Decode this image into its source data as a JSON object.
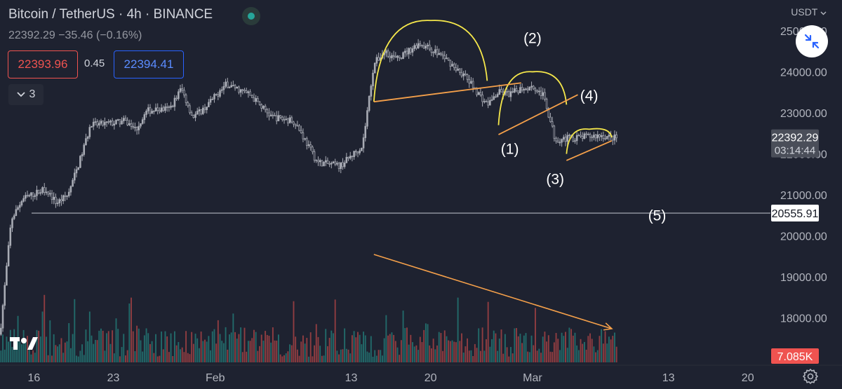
{
  "header": {
    "title": "Bitcoin / TetherUS · 4h · BINANCE",
    "last": "22392.29",
    "change": "−35.46 (−0.16%)",
    "bid": "22393.96",
    "spread": "0.45",
    "ask": "22394.41",
    "indicators_count": "3",
    "currency": "USDT"
  },
  "colors": {
    "background": "#1e2230",
    "candle": "#a9acb5",
    "volume_up": "#26a69a",
    "volume_down": "#ef5350",
    "pattern_cup": "#f6e84b",
    "trend_line": "#f5a04a",
    "horizontal_line": "#b2b5be"
  },
  "chart_data": {
    "type": "candlestick",
    "symbol": "BTC/USDT",
    "interval": "4h",
    "y_ticks": [
      "25000.00",
      "24000.00",
      "23000.00",
      "22000.00",
      "21000.00",
      "20000.00",
      "19000.00",
      "18000.00"
    ],
    "y_tick_values": [
      25000,
      24000,
      23000,
      22000,
      21000,
      20000,
      19000,
      18000
    ],
    "ylim": [
      16850,
      25750
    ],
    "x_ticks": [
      "16",
      "23",
      "Feb",
      "13",
      "20",
      "Mar",
      "13",
      "20"
    ],
    "x_range": [
      "2023-01-13",
      "2023-03-22"
    ],
    "x_tick_dates": [
      "2023-01-16",
      "2023-01-23",
      "2023-02-01",
      "2023-02-13",
      "2023-02-20",
      "2023-03-01",
      "2023-03-13",
      "2023-03-20"
    ],
    "last_price_label": "22392.29",
    "countdown": "03:14:44",
    "horizontal_line_label": "20555.91",
    "horizontal_line_value": 20555.91,
    "volume_label": "7.085K",
    "price_path": [
      [
        "2023-01-13",
        17600
      ],
      [
        "2023-01-14",
        20400
      ],
      [
        "2023-01-15",
        20900
      ],
      [
        "2023-01-17",
        21150
      ],
      [
        "2023-01-18",
        20800
      ],
      [
        "2023-01-19",
        21000
      ],
      [
        "2023-01-20",
        21800
      ],
      [
        "2023-01-21",
        22700
      ],
      [
        "2023-01-23",
        22750
      ],
      [
        "2023-01-24",
        22800
      ],
      [
        "2023-01-25",
        22600
      ],
      [
        "2023-01-26",
        23050
      ],
      [
        "2023-01-28",
        23100
      ],
      [
        "2023-01-29",
        23600
      ],
      [
        "2023-01-30",
        22900
      ],
      [
        "2023-01-31",
        23100
      ],
      [
        "2023-02-02",
        23700
      ],
      [
        "2023-02-04",
        23450
      ],
      [
        "2023-02-06",
        22900
      ],
      [
        "2023-02-08",
        22800
      ],
      [
        "2023-02-10",
        21800
      ],
      [
        "2023-02-12",
        21700
      ],
      [
        "2023-02-14",
        22200
      ],
      [
        "2023-02-15",
        24200
      ],
      [
        "2023-02-16",
        24500
      ],
      [
        "2023-02-17",
        24300
      ],
      [
        "2023-02-19",
        24700
      ],
      [
        "2023-02-21",
        24400
      ],
      [
        "2023-02-23",
        23900
      ],
      [
        "2023-02-25",
        23200
      ],
      [
        "2023-02-26",
        23500
      ],
      [
        "2023-02-27",
        23450
      ],
      [
        "2023-02-28",
        23600
      ],
      [
        "2023-03-01",
        23650
      ],
      [
        "2023-03-02",
        23400
      ],
      [
        "2023-03-03",
        22350
      ],
      [
        "2023-03-05",
        22400
      ],
      [
        "2023-03-07",
        22450
      ],
      [
        "2023-03-08",
        22392
      ]
    ],
    "annotations": {
      "labels": [
        {
          "text": "(1)",
          "date": "2023-02-27",
          "price": 22000
        },
        {
          "text": "(2)",
          "date": "2023-03-01",
          "price": 24700
        },
        {
          "text": "(3)",
          "date": "2023-03-03",
          "price": 21270
        },
        {
          "text": "(4)",
          "date": "2023-03-06",
          "price": 23300
        },
        {
          "text": "(5)",
          "date": "2023-03-12",
          "price": 20380
        }
      ],
      "cups": [
        {
          "from": [
            "2023-02-15",
            23270
          ],
          "peak": [
            "2023-02-20",
            25250
          ],
          "to": [
            "2023-02-25",
            23780
          ]
        },
        {
          "from": [
            "2023-02-26",
            22700
          ],
          "peak": [
            "2023-03-01",
            24000
          ],
          "to": [
            "2023-03-04",
            23200
          ]
        },
        {
          "from": [
            "2023-03-04",
            22000
          ],
          "peak": [
            "2023-03-06",
            22600
          ],
          "to": [
            "2023-03-08",
            22400
          ]
        }
      ],
      "trend_lines": [
        {
          "from": [
            "2023-02-15",
            23270
          ],
          "to": [
            "2023-02-28",
            23730
          ]
        },
        {
          "from": [
            "2023-02-26",
            22470
          ],
          "to": [
            "2023-03-05",
            23440
          ]
        },
        {
          "from": [
            "2023-03-04",
            21840
          ],
          "to": [
            "2023-03-08",
            22320
          ]
        }
      ],
      "volume_trend": {
        "from": "2023-02-15",
        "to": "2023-03-08"
      }
    }
  }
}
